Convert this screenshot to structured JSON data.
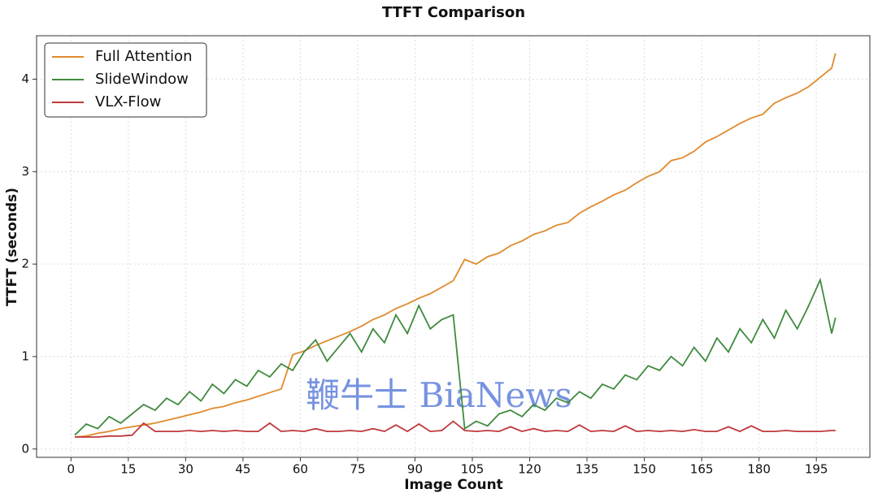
{
  "chart_data": {
    "type": "line",
    "title": "TTFT Comparison",
    "x_label": "Image Count",
    "y_label": "TTFT (seconds)",
    "watermark": "鞭牛士 BiaNews",
    "x": [
      1,
      4,
      7,
      10,
      13,
      16,
      19,
      22,
      25,
      28,
      31,
      34,
      37,
      40,
      43,
      46,
      49,
      52,
      55,
      58,
      61,
      64,
      67,
      70,
      73,
      76,
      79,
      82,
      85,
      88,
      91,
      94,
      97,
      100,
      103,
      106,
      109,
      112,
      115,
      118,
      121,
      124,
      127,
      130,
      133,
      136,
      139,
      142,
      145,
      148,
      151,
      154,
      157,
      160,
      163,
      166,
      169,
      172,
      175,
      178,
      181,
      184,
      187,
      190,
      193,
      196,
      199,
      200
    ],
    "series": [
      {
        "name": "Full Attention",
        "color": "#e08a2c",
        "values": [
          0.13,
          0.14,
          0.17,
          0.19,
          0.22,
          0.24,
          0.26,
          0.28,
          0.31,
          0.34,
          0.37,
          0.4,
          0.44,
          0.46,
          0.5,
          0.53,
          0.57,
          0.61,
          0.65,
          1.02,
          1.06,
          1.12,
          1.17,
          1.22,
          1.27,
          1.33,
          1.4,
          1.45,
          1.52,
          1.57,
          1.63,
          1.68,
          1.75,
          1.82,
          2.05,
          2.0,
          2.08,
          2.12,
          2.2,
          2.25,
          2.32,
          2.36,
          2.42,
          2.45,
          2.55,
          2.62,
          2.68,
          2.75,
          2.8,
          2.88,
          2.95,
          3.0,
          3.12,
          3.15,
          3.22,
          3.32,
          3.38,
          3.45,
          3.52,
          3.58,
          3.62,
          3.74,
          3.8,
          3.85,
          3.92,
          4.02,
          4.12,
          4.28
        ]
      },
      {
        "name": "SlideWindow",
        "color": "#3f8a3f",
        "values": [
          0.15,
          0.27,
          0.22,
          0.35,
          0.28,
          0.38,
          0.48,
          0.42,
          0.55,
          0.48,
          0.62,
          0.52,
          0.7,
          0.6,
          0.75,
          0.68,
          0.85,
          0.78,
          0.92,
          0.85,
          1.05,
          1.18,
          0.95,
          1.1,
          1.25,
          1.05,
          1.3,
          1.15,
          1.45,
          1.25,
          1.55,
          1.3,
          1.4,
          1.45,
          0.22,
          0.3,
          0.25,
          0.38,
          0.42,
          0.35,
          0.48,
          0.42,
          0.55,
          0.5,
          0.62,
          0.55,
          0.7,
          0.65,
          0.8,
          0.75,
          0.9,
          0.85,
          1.0,
          0.9,
          1.1,
          0.95,
          1.2,
          1.05,
          1.3,
          1.15,
          1.4,
          1.2,
          1.5,
          1.3,
          1.55,
          1.83,
          1.25,
          1.42
        ]
      },
      {
        "name": "VLX-Flow",
        "color": "#c0393b",
        "values": [
          0.13,
          0.13,
          0.13,
          0.14,
          0.14,
          0.15,
          0.28,
          0.19,
          0.19,
          0.19,
          0.2,
          0.19,
          0.2,
          0.19,
          0.2,
          0.19,
          0.19,
          0.28,
          0.19,
          0.2,
          0.19,
          0.22,
          0.19,
          0.19,
          0.2,
          0.19,
          0.22,
          0.19,
          0.26,
          0.19,
          0.27,
          0.19,
          0.2,
          0.3,
          0.2,
          0.19,
          0.2,
          0.19,
          0.24,
          0.19,
          0.22,
          0.19,
          0.2,
          0.19,
          0.26,
          0.19,
          0.2,
          0.19,
          0.25,
          0.19,
          0.2,
          0.19,
          0.2,
          0.19,
          0.21,
          0.19,
          0.19,
          0.24,
          0.19,
          0.25,
          0.19,
          0.19,
          0.2,
          0.19,
          0.19,
          0.19,
          0.2,
          0.2
        ]
      }
    ],
    "xlim": [
      -9,
      209
    ],
    "ylim": [
      -0.09,
      4.47
    ],
    "xticks": [
      0,
      15,
      30,
      45,
      60,
      75,
      90,
      105,
      120,
      135,
      150,
      165,
      180,
      195
    ],
    "yticks": [
      0,
      1,
      2,
      3,
      4
    ],
    "grid": true,
    "legend": "upper left"
  }
}
